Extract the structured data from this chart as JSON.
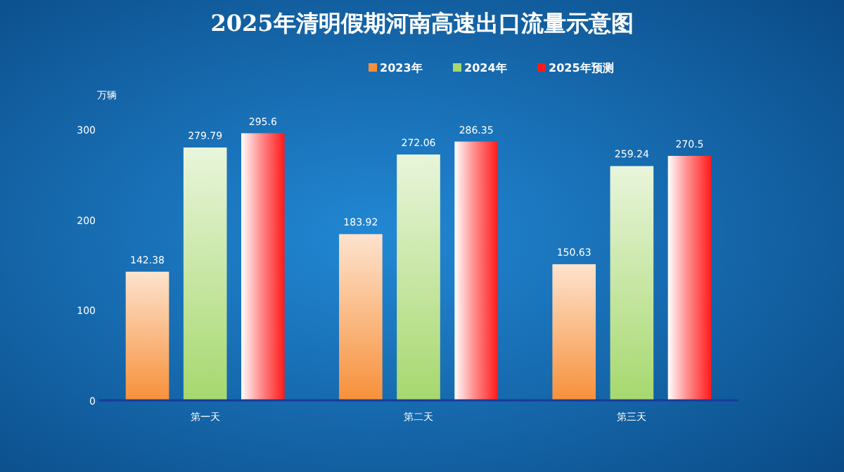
{
  "chart_data": {
    "type": "bar",
    "title": "2025年清明假期河南高速出口流量示意图",
    "ylabel": "万辆",
    "categories": [
      "第一天",
      "第二天",
      "第三天"
    ],
    "series": [
      {
        "name": "2023年",
        "color": "#f7903a",
        "values": [
          142.38,
          183.92,
          150.63
        ]
      },
      {
        "name": "2024年",
        "color": "#a6d86e",
        "values": [
          279.79,
          272.06,
          259.24
        ]
      },
      {
        "name": "2025年预测",
        "color": "#ff1a1a",
        "values": [
          295.6,
          286.35,
          270.5
        ]
      }
    ],
    "ylim": [
      0,
      300
    ],
    "yticks": [
      0,
      100,
      200,
      300
    ],
    "grid": false,
    "legend": "top",
    "data_labels": true
  }
}
